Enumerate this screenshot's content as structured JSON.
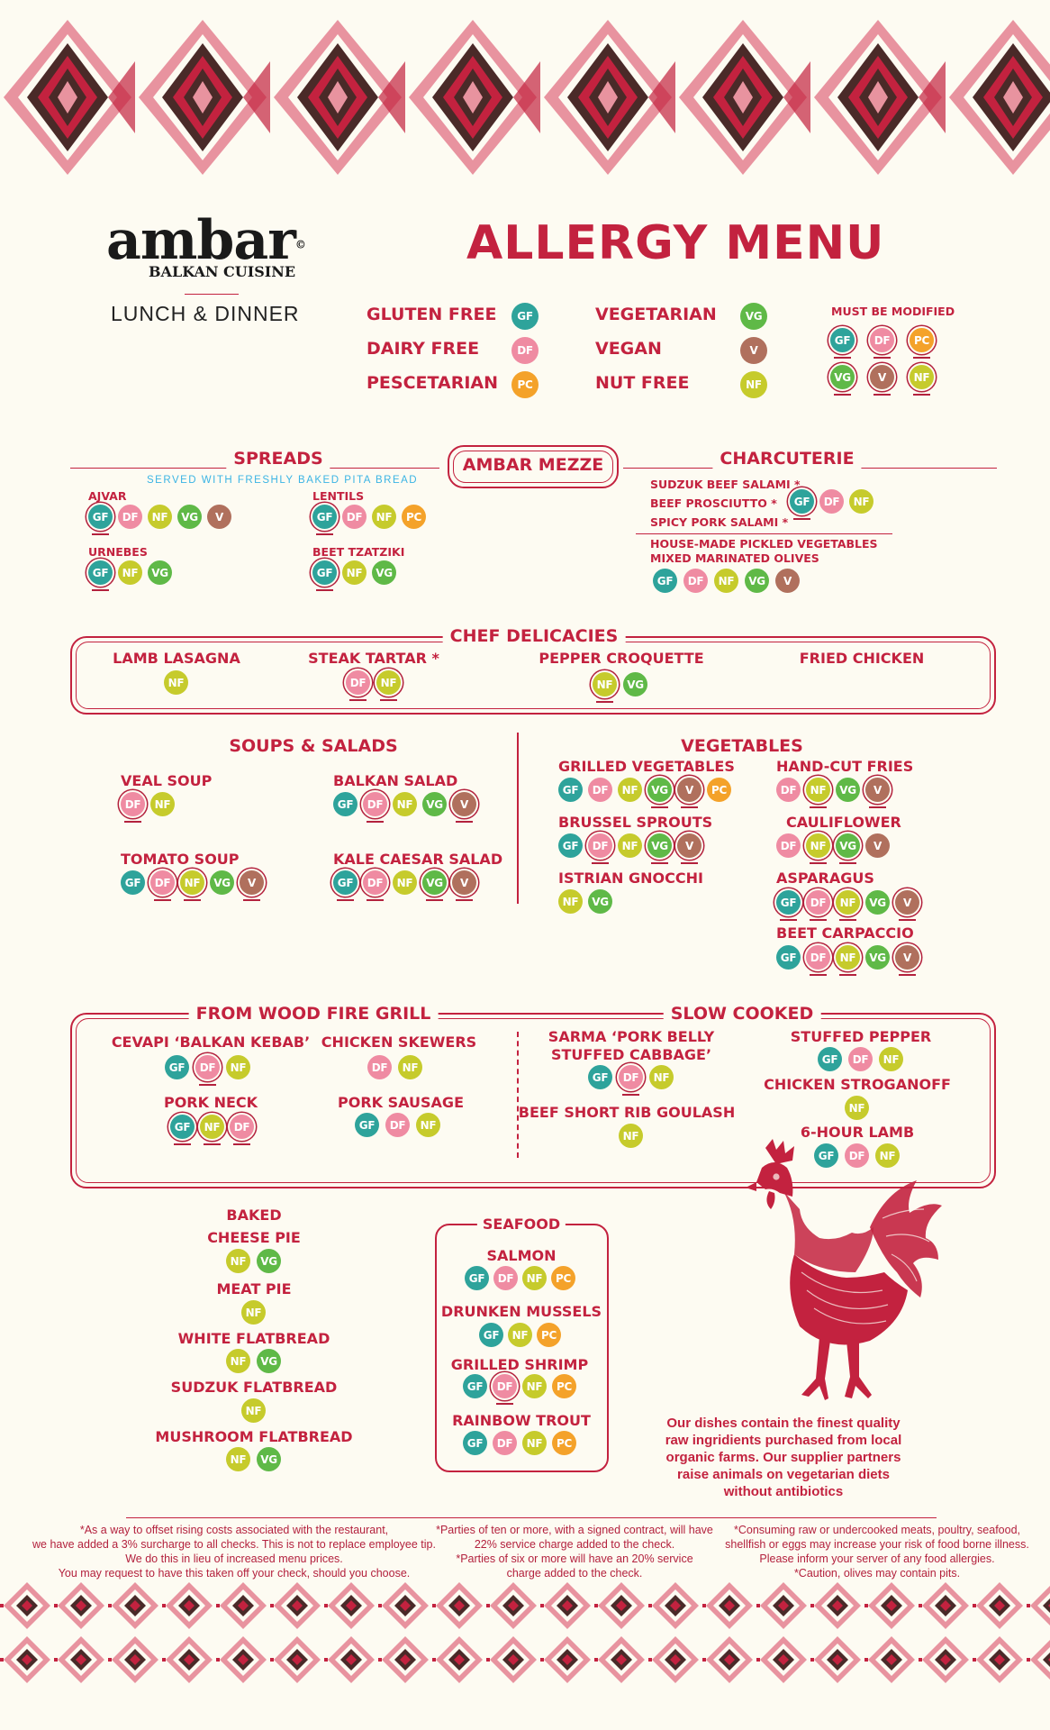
{
  "brand": {
    "name": "ambar",
    "copyright": "©",
    "subtitle": "BALKAN CUISINE",
    "service": "LUNCH & DINNER"
  },
  "title": "ALLERGY MENU",
  "legend": [
    {
      "label": "GLUTEN FREE",
      "code": "GF"
    },
    {
      "label": "DAIRY FREE",
      "code": "DF"
    },
    {
      "label": "PESCETARIAN",
      "code": "PC"
    },
    {
      "label": "VEGETARIAN",
      "code": "VG"
    },
    {
      "label": "VEGAN",
      "code": "V"
    },
    {
      "label": "NUT FREE",
      "code": "NF"
    }
  ],
  "must_be_modified": "MUST BE MODIFIED",
  "sections": {
    "spreads": "SPREADS",
    "spreads_note": "SERVED WITH FRESHLY BAKED PITA BREAD",
    "mezze": "AMBAR MEZZE",
    "charcuterie": "CHARCUTERIE",
    "chef": "CHEF DELICACIES",
    "soups": "SOUPS & SALADS",
    "vegetables": "VEGETABLES",
    "grill": "FROM WOOD FIRE GRILL",
    "slow": "SLOW COOKED",
    "baked": "BAKED",
    "seafood": "SEAFOOD"
  },
  "items": {
    "ajvar": "AJVAR",
    "urnebes": "URNEBES",
    "lentils": "LENTILS",
    "beet_tzatziki": "BEET TZATZIKI",
    "sudzuk_salami": "SUDZUK BEEF SALAMI *",
    "prosciutto": "BEEF PROSCIUTTO *",
    "pork_salami": "SPICY PORK SALAMI *",
    "pickled": "HOUSE-MADE PICKLED VEGETABLES",
    "olives": "MIXED MARINATED OLIVES",
    "lamb_lasagna": "LAMB LASAGNA",
    "steak_tartar": "STEAK TARTAR *",
    "pepper_croquette": "PEPPER CROQUETTE",
    "fried_chicken": "FRIED CHICKEN",
    "veal_soup": "VEAL SOUP",
    "balkan_salad": "BALKAN SALAD",
    "tomato_soup": "TOMATO SOUP",
    "kale_caesar": "KALE CAESAR SALAD",
    "grilled_veg": "GRILLED VEGETABLES",
    "fries": "HAND-CUT FRIES",
    "brussel": "BRUSSEL SPROUTS",
    "cauliflower": "CAULIFLOWER",
    "gnocchi": "ISTRIAN GNOCCHI",
    "asparagus": "ASPARAGUS",
    "beet_carpaccio": "BEET CARPACCIO",
    "cevapi": "CEVAPI ‘BALKAN KEBAB’",
    "chicken_skewers": "CHICKEN SKEWERS",
    "pork_neck": "PORK NECK",
    "pork_sausage": "PORK SAUSAGE",
    "sarma_1": "SARMA ‘PORK BELLY",
    "sarma_2": "STUFFED CABBAGE’",
    "goulash": "BEEF SHORT RIB GOULASH",
    "stuffed_pepper": "STUFFED PEPPER",
    "stroganoff": "CHICKEN STROGANOFF",
    "six_hour_lamb": "6-HOUR LAMB",
    "cheese_pie": "CHEESE PIE",
    "meat_pie": "MEAT PIE",
    "white_flatbread": "WHITE FLATBREAD",
    "sudzuk_flatbread": "SUDZUK FLATBREAD",
    "mushroom_flatbread": "MUSHROOM FLATBREAD",
    "salmon": "SALMON",
    "mussels": "DRUNKEN MUSSELS",
    "shrimp": "GRILLED SHRIMP",
    "trout": "RAINBOW TROUT"
  },
  "rooster_note": [
    "Our dishes contain the finest quality",
    "raw ingridients purchased from local",
    "organic farms. Our supplier partners",
    "raise animals on vegetarian diets",
    "without antibiotics"
  ],
  "footer": {
    "left": [
      "*As a way to offset rising costs associated with the restaurant,",
      "we have added a 3% surcharge to all checks. This is not to replace employee tip.",
      "We do this in lieu of increased menu prices.",
      "You may request to have this taken off your check, should you choose."
    ],
    "middle": [
      "*Parties of ten or more, with a signed contract, will have",
      "22% service charge added to the check.",
      "*Parties of six or more will have an 20% service",
      "charge added to the check."
    ],
    "right": [
      "*Consuming raw or undercooked meats, poultry, seafood,",
      "shellfish or eggs may increase your risk of food borne illness.",
      "Please inform your server of any food allergies.",
      "*Caution, olives may contain pits."
    ]
  },
  "colors": {
    "accent": "#c3223f",
    "GF": "#2ea39b",
    "DF": "#ef8ba2",
    "PC": "#f4a22a",
    "VG": "#5fb947",
    "V": "#b0705d",
    "NF": "#c6cb2c"
  }
}
